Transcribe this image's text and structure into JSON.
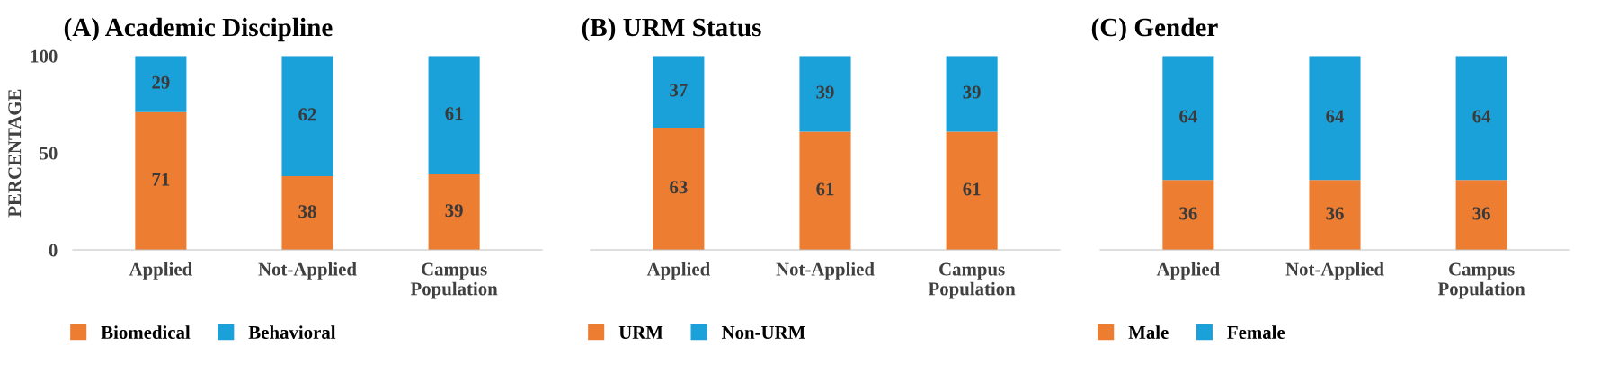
{
  "chart_data": [
    {
      "type": "bar",
      "title": "(A) Academic Discipline",
      "ylabel": "PERCENTAGE",
      "categories": [
        "Applied",
        "Not-Applied",
        "Campus\nPopulation"
      ],
      "stacked": true,
      "data_labels": true,
      "legend": "bottom left",
      "ylim": [
        0,
        100
      ],
      "yticks": [
        0,
        50,
        100
      ],
      "series": [
        {
          "name": "Biomedical",
          "color": "#ed7d31",
          "values": [
            71,
            38,
            39
          ]
        },
        {
          "name": "Behavioral",
          "color": "#1ba1d9",
          "values": [
            29,
            62,
            61
          ]
        }
      ]
    },
    {
      "type": "bar",
      "title": "(B) URM Status",
      "categories": [
        "Applied",
        "Not-Applied",
        "Campus\nPopulation"
      ],
      "stacked": true,
      "data_labels": true,
      "legend": "bottom left",
      "ylim": [
        0,
        100
      ],
      "tick_labels": "x",
      "series": [
        {
          "name": "URM",
          "color": "#ed7d31",
          "values": [
            63,
            61,
            61
          ]
        },
        {
          "name": "Non-URM",
          "color": "#1ba1d9",
          "values": [
            37,
            39,
            39
          ]
        }
      ]
    },
    {
      "type": "bar",
      "title": "(C) Gender",
      "categories": [
        "Applied",
        "Not-Applied",
        "Campus\nPopulation"
      ],
      "stacked": true,
      "data_labels": true,
      "legend": "bottom left",
      "ylim": [
        0,
        100
      ],
      "tick_labels": "x",
      "series": [
        {
          "name": "Male",
          "color": "#ed7d31",
          "values": [
            36,
            36,
            36
          ]
        },
        {
          "name": "Female",
          "color": "#1ba1d9",
          "values": [
            64,
            64,
            64
          ]
        }
      ]
    }
  ]
}
